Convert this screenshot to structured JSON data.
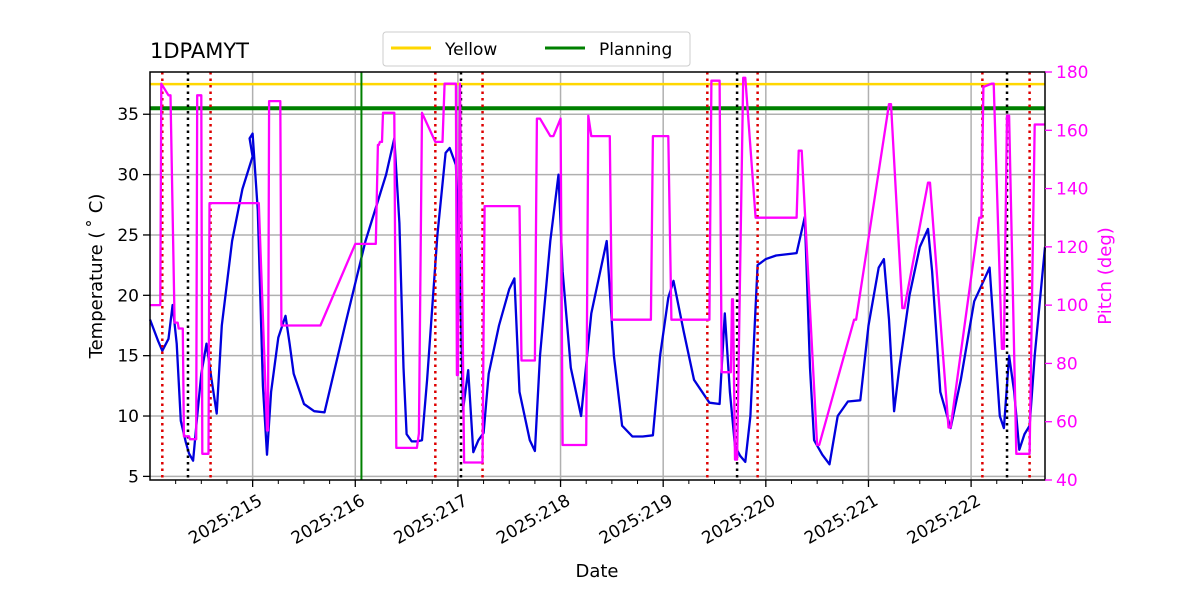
{
  "chart_data": {
    "type": "line",
    "title": "1DPAMYT",
    "xlabel": "Date",
    "ylabel": "Temperature ($^\\circ$C)",
    "ylabel_display": "Temperature ( ˚ C)",
    "y2label": "Pitch (deg)",
    "xlim": [
      214.0,
      222.72
    ],
    "ylim": [
      4.7,
      38.5
    ],
    "y2lim": [
      40,
      180
    ],
    "x_ticks": [
      215,
      216,
      217,
      218,
      219,
      220,
      221,
      222
    ],
    "x_tick_labels": [
      "2025:215",
      "2025:216",
      "2025:217",
      "2025:218",
      "2025:219",
      "2025:220",
      "2025:221",
      "2025:222"
    ],
    "y_ticks": [
      5,
      10,
      15,
      20,
      25,
      30,
      35
    ],
    "y_tick_labels": [
      "5",
      "10",
      "15",
      "20",
      "25",
      "30",
      "35"
    ],
    "y2_ticks": [
      40,
      60,
      80,
      100,
      120,
      140,
      160,
      180
    ],
    "y2_tick_labels": [
      "40",
      "60",
      "80",
      "100",
      "120",
      "140",
      "160",
      "180"
    ],
    "grid": true,
    "legend": {
      "placement": "top-center",
      "entries": [
        {
          "label": "Yellow",
          "color": "#ffd700"
        },
        {
          "label": "Planning",
          "color": "#008000"
        }
      ]
    },
    "limits": {
      "yellow": 37.5,
      "planning": 35.5
    },
    "vertical_lines": {
      "green_solid": [
        216.06
      ],
      "black_dotted": [
        214.37,
        217.03,
        219.72,
        222.35
      ],
      "red_dotted": [
        214.12,
        214.59,
        216.78,
        217.24,
        219.43,
        219.92,
        222.11,
        222.57
      ]
    },
    "colors": {
      "temperature": "#0000dd",
      "pitch": "#ff00ff",
      "yellow": "#ffd700",
      "planning": "#008000",
      "grid": "#b0b0b0",
      "black_line": "#000000",
      "red_line": "#dd0000"
    },
    "series": [
      {
        "name": "Temperature",
        "axis": "left",
        "x": [
          214.0,
          214.08,
          214.12,
          214.18,
          214.22,
          214.26,
          214.3,
          214.35,
          214.38,
          214.42,
          214.46,
          214.5,
          214.55,
          214.6,
          214.65,
          214.7,
          214.8,
          214.9,
          215.0,
          214.97,
          215.0,
          215.05,
          215.1,
          215.14,
          215.18,
          215.25,
          215.32,
          215.36,
          215.4,
          215.5,
          215.6,
          215.7,
          215.9,
          216.1,
          216.3,
          216.38,
          216.43,
          216.47,
          216.5,
          216.55,
          216.6,
          216.65,
          216.7,
          216.8,
          216.88,
          216.92,
          216.98,
          217.02,
          217.05,
          217.1,
          217.15,
          217.2,
          217.25,
          217.3,
          217.4,
          217.5,
          217.55,
          217.6,
          217.7,
          217.75,
          217.8,
          217.9,
          217.98,
          218.02,
          218.1,
          218.2,
          218.3,
          218.45,
          218.52,
          218.6,
          218.7,
          218.8,
          218.9,
          218.97,
          219.05,
          219.1,
          219.2,
          219.3,
          219.45,
          219.55,
          219.6,
          219.65,
          219.7,
          219.75,
          219.8,
          219.85,
          219.92,
          220.0,
          220.1,
          220.3,
          220.38,
          220.43,
          220.47,
          220.55,
          220.62,
          220.7,
          220.8,
          220.92,
          221.0,
          221.1,
          221.15,
          221.2,
          221.25,
          221.3,
          221.4,
          221.5,
          221.58,
          221.62,
          221.7,
          221.8,
          221.9,
          221.98,
          222.03,
          222.1,
          222.18,
          222.28,
          222.32,
          222.37,
          222.42,
          222.47,
          222.52,
          222.57,
          222.62,
          222.72
        ],
        "y": [
          18.0,
          16.2,
          15.4,
          16.4,
          19.2,
          16.0,
          9.6,
          7.8,
          6.9,
          6.3,
          10.0,
          13.5,
          16.0,
          13.0,
          10.2,
          17.5,
          24.5,
          28.8,
          31.5,
          33.0,
          33.4,
          27.0,
          12.5,
          6.8,
          12.0,
          16.5,
          18.3,
          16.0,
          13.5,
          11.0,
          10.4,
          10.3,
          17.5,
          24.5,
          30.0,
          33.0,
          26.0,
          14.0,
          8.5,
          7.9,
          7.9,
          8.0,
          13.0,
          25.0,
          31.8,
          32.2,
          30.8,
          22.0,
          10.5,
          13.8,
          7.0,
          8.0,
          8.6,
          13.5,
          17.5,
          20.5,
          21.4,
          12.0,
          8.0,
          7.1,
          15.0,
          24.5,
          30.0,
          22.0,
          14.0,
          10.0,
          18.5,
          24.5,
          15.0,
          9.2,
          8.3,
          8.3,
          8.4,
          15.0,
          19.8,
          21.2,
          17.0,
          13.0,
          11.1,
          11.0,
          18.5,
          12.0,
          7.5,
          6.7,
          6.2,
          10.0,
          22.5,
          23.0,
          23.3,
          23.5,
          26.5,
          14.0,
          8.0,
          6.8,
          6.0,
          10.0,
          11.2,
          11.3,
          17.5,
          22.3,
          23.0,
          18.0,
          10.4,
          14.0,
          20.0,
          24.0,
          25.5,
          22.0,
          12.0,
          9.0,
          13.0,
          17.0,
          19.5,
          20.8,
          22.3,
          10.0,
          9.0,
          15.0,
          12.0,
          7.2,
          8.5,
          9.2,
          15.0,
          24.0
        ]
      },
      {
        "name": "Pitch",
        "axis": "right",
        "x": [
          214.0,
          214.1,
          214.11,
          214.18,
          214.2,
          214.24,
          214.27,
          214.28,
          214.32,
          214.33,
          214.38,
          214.39,
          214.45,
          214.46,
          214.5,
          214.51,
          214.57,
          214.58,
          214.93,
          214.94,
          215.06,
          215.14,
          215.15,
          215.16,
          215.27,
          215.28,
          215.65,
          215.66,
          216.0,
          216.03,
          216.2,
          216.22,
          216.23,
          216.24,
          216.26,
          216.27,
          216.38,
          216.4,
          216.5,
          216.51,
          216.6,
          216.62,
          216.65,
          216.78,
          216.79,
          216.85,
          216.87,
          216.88,
          216.98,
          216.99,
          217.0,
          217.02,
          217.06,
          217.1,
          217.12,
          217.24,
          217.26,
          217.6,
          217.62,
          217.75,
          217.77,
          217.8,
          217.9,
          217.93,
          218.0,
          218.02,
          218.25,
          218.27,
          218.3,
          218.48,
          218.5,
          218.88,
          218.9,
          219.05,
          219.08,
          219.45,
          219.47,
          219.55,
          219.57,
          219.66,
          219.67,
          219.68,
          219.7,
          219.72,
          219.78,
          219.8,
          219.9,
          219.92,
          220.3,
          220.32,
          220.35,
          220.5,
          220.52,
          220.86,
          220.88,
          221.2,
          221.22,
          221.33,
          221.35,
          221.58,
          221.6,
          221.78,
          221.8,
          222.08,
          222.1,
          222.12,
          222.13,
          222.2,
          222.22,
          222.3,
          222.32,
          222.35,
          222.37,
          222.44,
          222.47,
          222.55,
          222.57,
          222.62,
          222.63,
          222.72
        ],
        "y": [
          100,
          100,
          176,
          172,
          172,
          94,
          94,
          92,
          92,
          55,
          55,
          54,
          54,
          172,
          172,
          49,
          49,
          135,
          135,
          135,
          135,
          57,
          57,
          170,
          170,
          93,
          93,
          93,
          121,
          121,
          121,
          155,
          155,
          156,
          156,
          166,
          166,
          51,
          51,
          51,
          51,
          56,
          166,
          156,
          156,
          156,
          176,
          176,
          176,
          76,
          76,
          176,
          46,
          46,
          46,
          46,
          134,
          134,
          81,
          81,
          164,
          164,
          158,
          158,
          164,
          52,
          52,
          165,
          158,
          158,
          95,
          95,
          158,
          158,
          95,
          95,
          177,
          177,
          77,
          77,
          102,
          102,
          47,
          47,
          178,
          178,
          130,
          130,
          130,
          153,
          153,
          52,
          52,
          95,
          95,
          169,
          169,
          99,
          99,
          142,
          142,
          58,
          58,
          130,
          130,
          175,
          175,
          176,
          176,
          85,
          85,
          165,
          165,
          49,
          49,
          49,
          49,
          162,
          162,
          162
        ]
      }
    ]
  }
}
